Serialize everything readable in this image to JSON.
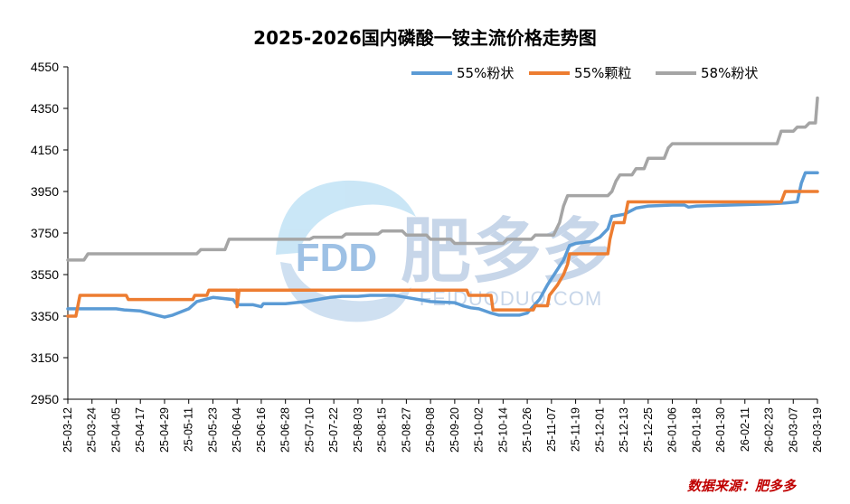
{
  "chart_data": {
    "type": "line",
    "title": "2025-2026国内磷酸一铵主流价格走势图",
    "ylim": [
      2950,
      4550
    ],
    "yticks": [
      2950,
      3150,
      3350,
      3550,
      3750,
      3950,
      4150,
      4350,
      4550
    ],
    "xticks": [
      "25-03-12",
      "25-03-24",
      "25-04-05",
      "25-04-17",
      "25-04-29",
      "25-05-11",
      "25-05-23",
      "25-06-04",
      "25-06-16",
      "25-06-28",
      "25-07-10",
      "25-07-22",
      "25-08-03",
      "25-08-15",
      "25-08-27",
      "25-09-08",
      "25-09-20",
      "25-10-02",
      "25-10-14",
      "25-10-26",
      "25-11-07",
      "25-11-19",
      "25-12-01",
      "25-12-13",
      "25-12-25",
      "26-01-06",
      "26-01-18",
      "26-01-30",
      "26-02-11",
      "26-02-23",
      "26-03-07",
      "26-03-19"
    ],
    "legend_position": "top-right",
    "series": [
      {
        "name": "55%粉状",
        "color": "#5b9bd5",
        "points": [
          [
            "25-03-12",
            3385
          ],
          [
            "25-04-05",
            3385
          ],
          [
            "25-04-09",
            3380
          ],
          [
            "25-04-17",
            3375
          ],
          [
            "25-04-21",
            3365
          ],
          [
            "25-04-25",
            3355
          ],
          [
            "25-04-29",
            3345
          ],
          [
            "25-05-03",
            3355
          ],
          [
            "25-05-07",
            3370
          ],
          [
            "25-05-11",
            3385
          ],
          [
            "25-05-15",
            3420
          ],
          [
            "25-05-19",
            3430
          ],
          [
            "25-05-23",
            3440
          ],
          [
            "25-06-02",
            3430
          ],
          [
            "25-06-04",
            3405
          ],
          [
            "25-06-12",
            3405
          ],
          [
            "25-06-16",
            3395
          ],
          [
            "25-06-17",
            3410
          ],
          [
            "25-06-28",
            3410
          ],
          [
            "25-07-08",
            3420
          ],
          [
            "25-07-14",
            3430
          ],
          [
            "25-07-20",
            3440
          ],
          [
            "25-07-26",
            3445
          ],
          [
            "25-08-03",
            3445
          ],
          [
            "25-08-09",
            3450
          ],
          [
            "25-08-21",
            3450
          ],
          [
            "25-08-27",
            3440
          ],
          [
            "25-09-02",
            3430
          ],
          [
            "25-09-08",
            3420
          ],
          [
            "25-09-20",
            3415
          ],
          [
            "25-09-24",
            3400
          ],
          [
            "25-09-28",
            3390
          ],
          [
            "25-10-02",
            3385
          ],
          [
            "25-10-08",
            3365
          ],
          [
            "25-10-12",
            3355
          ],
          [
            "25-10-22",
            3355
          ],
          [
            "25-10-26",
            3365
          ],
          [
            "25-11-01",
            3430
          ],
          [
            "25-11-05",
            3500
          ],
          [
            "25-11-09",
            3560
          ],
          [
            "25-11-13",
            3620
          ],
          [
            "25-11-16",
            3690
          ],
          [
            "25-11-19",
            3700
          ],
          [
            "25-11-27",
            3710
          ],
          [
            "25-12-01",
            3730
          ],
          [
            "25-12-05",
            3770
          ],
          [
            "25-12-07",
            3830
          ],
          [
            "25-12-13",
            3840
          ],
          [
            "25-12-19",
            3870
          ],
          [
            "25-12-25",
            3880
          ],
          [
            "26-01-06",
            3885
          ],
          [
            "26-01-12",
            3885
          ],
          [
            "26-01-14",
            3875
          ],
          [
            "26-01-18",
            3880
          ],
          [
            "26-02-23",
            3890
          ],
          [
            "26-03-03",
            3895
          ],
          [
            "26-03-09",
            3900
          ],
          [
            "26-03-11",
            3990
          ],
          [
            "26-03-13",
            4040
          ],
          [
            "26-03-19",
            4040
          ]
        ]
      },
      {
        "name": "55%颗粒",
        "color": "#ed7d31",
        "points": [
          [
            "25-03-12",
            3350
          ],
          [
            "25-03-16",
            3350
          ],
          [
            "25-03-18",
            3450
          ],
          [
            "25-04-10",
            3450
          ],
          [
            "25-04-11",
            3430
          ],
          [
            "25-05-13",
            3430
          ],
          [
            "25-05-14",
            3450
          ],
          [
            "25-05-20",
            3450
          ],
          [
            "25-05-21",
            3475
          ],
          [
            "25-06-04",
            3475
          ],
          [
            "25-06-04",
            3395
          ],
          [
            "25-06-05",
            3475
          ],
          [
            "25-09-26",
            3475
          ],
          [
            "25-09-27",
            3450
          ],
          [
            "25-10-08",
            3450
          ],
          [
            "25-10-09",
            3380
          ],
          [
            "25-10-29",
            3380
          ],
          [
            "25-10-30",
            3400
          ],
          [
            "25-11-05",
            3400
          ],
          [
            "25-11-06",
            3450
          ],
          [
            "25-11-10",
            3500
          ],
          [
            "25-11-13",
            3550
          ],
          [
            "25-11-15",
            3600
          ],
          [
            "25-11-16",
            3650
          ],
          [
            "25-12-05",
            3650
          ],
          [
            "25-12-06",
            3720
          ],
          [
            "25-12-08",
            3800
          ],
          [
            "25-12-13",
            3800
          ],
          [
            "25-12-15",
            3900
          ],
          [
            "26-03-01",
            3900
          ],
          [
            "26-03-03",
            3950
          ],
          [
            "26-03-19",
            3950
          ]
        ]
      },
      {
        "name": "58%粉状",
        "color": "#a5a5a5",
        "points": [
          [
            "25-03-12",
            3620
          ],
          [
            "25-03-20",
            3620
          ],
          [
            "25-03-22",
            3650
          ],
          [
            "25-05-15",
            3650
          ],
          [
            "25-05-17",
            3670
          ],
          [
            "25-05-29",
            3670
          ],
          [
            "25-05-31",
            3720
          ],
          [
            "25-07-10",
            3720
          ],
          [
            "25-07-12",
            3730
          ],
          [
            "25-07-26",
            3730
          ],
          [
            "25-07-28",
            3745
          ],
          [
            "25-08-13",
            3745
          ],
          [
            "25-08-15",
            3760
          ],
          [
            "25-08-25",
            3760
          ],
          [
            "25-08-27",
            3740
          ],
          [
            "25-09-06",
            3740
          ],
          [
            "25-09-08",
            3720
          ],
          [
            "25-09-18",
            3720
          ],
          [
            "25-09-20",
            3700
          ],
          [
            "25-10-14",
            3700
          ],
          [
            "25-10-16",
            3720
          ],
          [
            "25-10-28",
            3720
          ],
          [
            "25-10-30",
            3740
          ],
          [
            "25-11-08",
            3740
          ],
          [
            "25-11-11",
            3800
          ],
          [
            "25-11-13",
            3880
          ],
          [
            "25-11-15",
            3930
          ],
          [
            "25-12-05",
            3930
          ],
          [
            "25-12-07",
            3950
          ],
          [
            "25-12-09",
            4000
          ],
          [
            "25-12-11",
            4030
          ],
          [
            "25-12-17",
            4030
          ],
          [
            "25-12-19",
            4060
          ],
          [
            "25-12-23",
            4060
          ],
          [
            "25-12-25",
            4110
          ],
          [
            "26-01-02",
            4110
          ],
          [
            "26-01-04",
            4160
          ],
          [
            "26-01-06",
            4180
          ],
          [
            "26-02-27",
            4180
          ],
          [
            "26-03-01",
            4240
          ],
          [
            "26-03-07",
            4240
          ],
          [
            "26-03-09",
            4260
          ],
          [
            "26-03-13",
            4260
          ],
          [
            "26-03-15",
            4280
          ],
          [
            "26-03-18",
            4280
          ],
          [
            "26-03-19",
            4400
          ]
        ]
      }
    ]
  },
  "watermark": {
    "logo_text": "FDD",
    "name": "肥多多",
    "site": "FEIDUODUO.COM"
  },
  "source_text": "数据来源：肥多多"
}
